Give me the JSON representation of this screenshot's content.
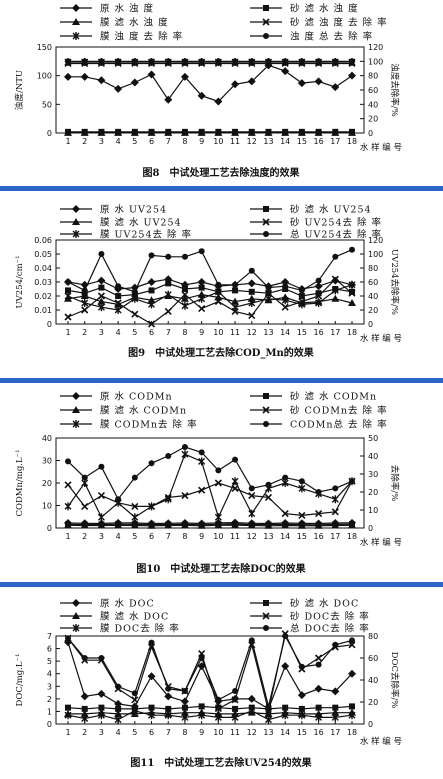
{
  "chart_data": [
    {
      "type": "line",
      "caption": "图8　中试处理工艺去除浊度的效果",
      "ylabel_left": "浊度/NTU",
      "ylabel_right": "浊度去除率/%",
      "xlabel": "水 样 编 号",
      "x": [
        1,
        2,
        3,
        4,
        5,
        6,
        7,
        8,
        9,
        10,
        11,
        12,
        13,
        14,
        15,
        16,
        17,
        18
      ],
      "ylim_left": [
        0,
        150
      ],
      "yticks_left": [
        0,
        50,
        100,
        150
      ],
      "ylim_right": [
        0,
        120
      ],
      "yticks_right": [
        0,
        20,
        40,
        60,
        80,
        100,
        120
      ],
      "legend": [
        {
          "name": "原 水 浊 度",
          "marker": "diamond"
        },
        {
          "name": "砂 滤 水 浊 度",
          "marker": "square"
        },
        {
          "name": "膜 滤 水 浊 度",
          "marker": "triangle"
        },
        {
          "name": "砂 滤 浊 度 去 除 率",
          "marker": "x"
        },
        {
          "name": "膜 浊 度 去 除 率",
          "marker": "star"
        },
        {
          "name": "浊 度 总 去 除 率",
          "marker": "circle"
        }
      ],
      "series": [
        {
          "name": "原 水 浊 度",
          "axis": "left",
          "marker": "diamond",
          "values": [
            98,
            98,
            92,
            77,
            88,
            102,
            58,
            98,
            65,
            55,
            85,
            90,
            118,
            108,
            87,
            90,
            80,
            100
          ]
        },
        {
          "name": "砂 滤 水 浊 度",
          "axis": "left",
          "marker": "square",
          "values": [
            2,
            2,
            2,
            2,
            2,
            2,
            2,
            2,
            2,
            2,
            2,
            2,
            2,
            2,
            2,
            2,
            2,
            2
          ]
        },
        {
          "name": "膜 滤 水 浊 度",
          "axis": "left",
          "marker": "triangle",
          "values": [
            0.2,
            0.2,
            0.2,
            0.2,
            0.2,
            0.2,
            0.2,
            0.2,
            0.2,
            0.2,
            0.2,
            0.2,
            0.2,
            0.2,
            0.2,
            0.2,
            0.2,
            0.2
          ]
        },
        {
          "name": "砂 滤 浊 度 去 除 率",
          "axis": "right",
          "marker": "x",
          "values": [
            97,
            97,
            97,
            97,
            97,
            97,
            97,
            97,
            97,
            97,
            97,
            97,
            97,
            97,
            97,
            97,
            97,
            97
          ]
        },
        {
          "name": "膜 浊 度 去 除 率",
          "axis": "right",
          "marker": "star",
          "values": [
            99,
            99,
            99,
            99,
            99,
            99,
            99,
            99,
            99,
            99,
            99,
            99,
            99,
            99,
            99,
            99,
            99,
            99
          ]
        },
        {
          "name": "浊 度 总 去 除 率",
          "axis": "right",
          "marker": "circle",
          "values": [
            100,
            100,
            100,
            100,
            100,
            100,
            100,
            100,
            100,
            100,
            100,
            100,
            100,
            100,
            100,
            100,
            100,
            100
          ]
        }
      ]
    },
    {
      "type": "line",
      "caption": "图9　中试处理工艺去除COD_Mn的效果",
      "ylabel_left": "UV254/cm⁻¹",
      "ylabel_right": "UV254去除率/%",
      "xlabel": "水 样 编 号",
      "x": [
        1,
        2,
        3,
        4,
        5,
        6,
        7,
        8,
        9,
        10,
        11,
        12,
        13,
        14,
        15,
        16,
        17,
        18
      ],
      "ylim_left": [
        0,
        0.06
      ],
      "yticks_left": [
        0,
        0.01,
        0.02,
        0.03,
        0.04,
        0.05,
        0.06
      ],
      "ylim_right": [
        0,
        120
      ],
      "yticks_right": [
        0,
        20,
        40,
        60,
        80,
        100,
        120
      ],
      "legend": [
        {
          "name": "原 水 UV254",
          "marker": "diamond"
        },
        {
          "name": "砂 滤 水 UV254",
          "marker": "square"
        },
        {
          "name": "膜 滤 水 UV254",
          "marker": "triangle"
        },
        {
          "name": "砂 UV254去 除 率",
          "marker": "x"
        },
        {
          "name": "膜 UV254去 除 率",
          "marker": "star"
        },
        {
          "name": "总 UV254去 除 率",
          "marker": "circle"
        }
      ],
      "series": [
        {
          "name": "原 水 UV254",
          "axis": "left",
          "marker": "diamond",
          "values": [
            0.03,
            0.028,
            0.031,
            0.025,
            0.026,
            0.03,
            0.032,
            0.028,
            0.03,
            0.027,
            0.028,
            0.029,
            0.027,
            0.03,
            0.025,
            0.027,
            0.031,
            0.028
          ]
        },
        {
          "name": "砂 滤 水 UV254",
          "axis": "left",
          "marker": "square",
          "values": [
            0.024,
            0.022,
            0.026,
            0.02,
            0.021,
            0.024,
            0.029,
            0.025,
            0.026,
            0.023,
            0.024,
            0.023,
            0.022,
            0.025,
            0.02,
            0.022,
            0.025,
            0.023
          ]
        },
        {
          "name": "膜 滤 水 UV254",
          "axis": "left",
          "marker": "triangle",
          "values": [
            0.018,
            0.02,
            0.016,
            0.014,
            0.019,
            0.017,
            0.02,
            0.018,
            0.021,
            0.019,
            0.016,
            0.018,
            0.017,
            0.019,
            0.015,
            0.016,
            0.018,
            0.015
          ]
        },
        {
          "name": "砂 UV254去 除 率",
          "axis": "right",
          "marker": "x",
          "values": [
            10,
            20,
            40,
            30,
            14,
            0,
            18,
            42,
            22,
            32,
            18,
            12,
            44,
            24,
            32,
            40,
            64,
            44
          ]
        },
        {
          "name": "膜 UV254去 除 率",
          "axis": "right",
          "marker": "star",
          "values": [
            40,
            30,
            24,
            20,
            36,
            28,
            42,
            26,
            36,
            46,
            24,
            30,
            36,
            34,
            28,
            30,
            48,
            56
          ]
        },
        {
          "name": "总 UV254去 除 率",
          "axis": "right",
          "marker": "circle",
          "values": [
            60,
            48,
            100,
            54,
            46,
            98,
            96,
            96,
            104,
            56,
            56,
            76,
            52,
            54,
            48,
            62,
            96,
            106
          ]
        }
      ]
    },
    {
      "type": "line",
      "caption": "图10　中试处理工艺去除DOC的效果",
      "ylabel_left": "CODMn/mg.L⁻¹",
      "ylabel_right": "去除率/%",
      "xlabel": "水 样 编 号",
      "x": [
        1,
        2,
        3,
        4,
        5,
        6,
        7,
        8,
        9,
        10,
        11,
        12,
        13,
        14,
        15,
        16,
        17,
        18
      ],
      "ylim_left": [
        0,
        40
      ],
      "yticks_left": [
        0,
        10,
        20,
        30,
        40
      ],
      "ylim_right": [
        0,
        50
      ],
      "yticks_right": [
        0,
        10,
        20,
        30,
        40,
        50
      ],
      "legend": [
        {
          "name": "原 水 CODMn",
          "marker": "diamond"
        },
        {
          "name": "砂 滤 水 CODMn",
          "marker": "square"
        },
        {
          "name": "膜 滤 水 CODMn",
          "marker": "triangle"
        },
        {
          "name": "砂 CODMn去 除 率",
          "marker": "x"
        },
        {
          "name": "膜 CODMn去 除 率",
          "marker": "star"
        },
        {
          "name": "CODMn总 去 除 率",
          "marker": "circle"
        }
      ],
      "series": [
        {
          "name": "原 水 CODMn",
          "axis": "left",
          "marker": "diamond",
          "values": [
            2.2,
            2.1,
            2.0,
            2.3,
            2.2,
            2.0,
            2.1,
            2.2,
            2.0,
            2.3,
            2.4,
            2.1,
            2.0,
            2.2,
            2.1,
            2.0,
            2.2,
            2.3
          ]
        },
        {
          "name": "砂 滤 水 CODMn",
          "axis": "left",
          "marker": "square",
          "values": [
            1.6,
            1.5,
            1.5,
            1.7,
            1.6,
            1.5,
            1.5,
            1.6,
            1.4,
            1.7,
            1.8,
            1.5,
            1.5,
            1.6,
            1.5,
            1.4,
            1.6,
            1.7
          ]
        },
        {
          "name": "膜 滤 水 CODMn",
          "axis": "left",
          "marker": "triangle",
          "values": [
            1.2,
            1.1,
            1.1,
            1.2,
            1.1,
            1.0,
            1.1,
            1.2,
            1.0,
            1.2,
            1.3,
            1.1,
            1.0,
            1.1,
            1.0,
            1.0,
            1.1,
            1.2
          ]
        },
        {
          "name": "砂 CODMn去 除 率",
          "axis": "right",
          "marker": "x",
          "values": [
            24,
            12,
            18,
            14,
            12,
            12,
            17,
            18,
            21,
            25,
            22,
            18,
            17,
            8,
            7,
            8,
            9,
            26
          ]
        },
        {
          "name": "膜 CODMn去 除 率",
          "axis": "right",
          "marker": "star",
          "values": [
            12,
            25,
            6,
            14,
            6,
            12,
            16,
            41,
            37,
            6,
            26,
            8,
            22,
            25,
            22,
            19,
            16,
            26
          ]
        },
        {
          "name": "CODMn总 去 除 率",
          "axis": "right",
          "marker": "circle",
          "values": [
            37,
            28,
            34,
            16,
            28,
            36,
            40,
            45,
            42,
            32,
            38,
            22,
            24,
            28,
            26,
            20,
            22,
            26
          ]
        }
      ]
    },
    {
      "type": "line",
      "caption": "图11　中试处理工艺去除UV254的效果",
      "ylabel_left": "DOC/mg.L⁻¹",
      "ylabel_right": "DOC去除率/%",
      "xlabel": "水 样 编 号",
      "x": [
        1,
        2,
        3,
        4,
        5,
        6,
        7,
        8,
        9,
        10,
        11,
        12,
        13,
        14,
        15,
        16,
        17,
        18
      ],
      "ylim_left": [
        0,
        7
      ],
      "yticks_left": [
        0,
        1,
        2,
        3,
        4,
        5,
        6,
        7
      ],
      "ylim_right": [
        0,
        80
      ],
      "yticks_right": [
        0,
        20,
        40,
        60,
        80
      ],
      "legend": [
        {
          "name": "原 水 DOC",
          "marker": "diamond"
        },
        {
          "name": "砂 滤 水 DOC",
          "marker": "square"
        },
        {
          "name": "膜 滤 水 DOC",
          "marker": "triangle"
        },
        {
          "name": "砂 DOC去 除 率",
          "marker": "x"
        },
        {
          "name": "膜 DOC去 除 率",
          "marker": "star"
        },
        {
          "name": "总 DOC去 除 率",
          "marker": "circle"
        }
      ],
      "series": [
        {
          "name": "原 水 DOC",
          "axis": "left",
          "marker": "diamond",
          "values": [
            6.5,
            2.2,
            2.4,
            1.6,
            1.4,
            3.8,
            2.2,
            1.8,
            4.6,
            1.8,
            2.0,
            2.0,
            1.2,
            4.6,
            2.3,
            2.8,
            2.6,
            4.0
          ]
        },
        {
          "name": "砂 滤 水 DOC",
          "axis": "left",
          "marker": "square",
          "values": [
            1.3,
            1.2,
            1.3,
            1.2,
            1.2,
            1.3,
            1.2,
            1.3,
            1.4,
            1.3,
            1.2,
            1.3,
            1.2,
            1.3,
            1.2,
            1.3,
            1.3,
            1.4
          ]
        },
        {
          "name": "膜 滤 水 DOC",
          "axis": "left",
          "marker": "triangle",
          "values": [
            0.8,
            0.8,
            0.9,
            0.8,
            0.8,
            0.9,
            0.8,
            0.9,
            0.9,
            0.8,
            0.8,
            0.9,
            0.8,
            0.9,
            0.8,
            0.8,
            0.9,
            0.9
          ]
        },
        {
          "name": "砂 DOC去 除 率",
          "axis": "right",
          "marker": "x",
          "values": [
            78,
            58,
            58,
            32,
            22,
            70,
            34,
            30,
            64,
            14,
            22,
            72,
            12,
            82,
            50,
            60,
            70,
            72
          ]
        },
        {
          "name": "膜 DOC去 除 率",
          "axis": "right",
          "marker": "star",
          "values": [
            8,
            5,
            8,
            4,
            12,
            8,
            8,
            6,
            8,
            6,
            6,
            12,
            4,
            8,
            8,
            6,
            6,
            8
          ]
        },
        {
          "name": "总 DOC去 除 率",
          "axis": "right",
          "marker": "circle",
          "values": [
            78,
            60,
            60,
            34,
            28,
            74,
            32,
            30,
            60,
            22,
            30,
            76,
            16,
            80,
            52,
            54,
            72,
            76
          ]
        }
      ]
    }
  ]
}
